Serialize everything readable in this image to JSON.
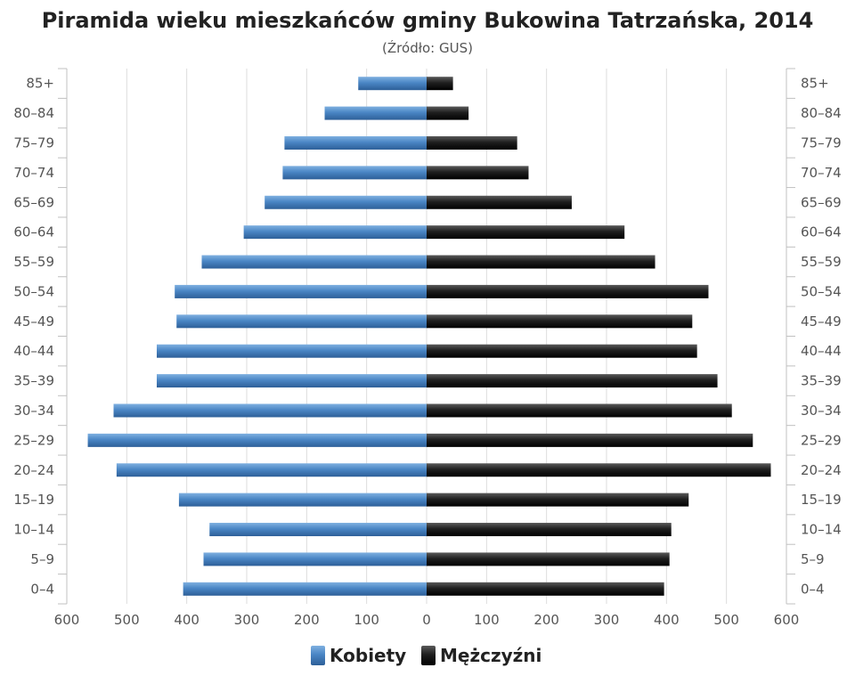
{
  "chart_data": {
    "type": "bar",
    "orientation": "horizontal-population-pyramid",
    "title": "Piramida wieku mieszkańców gminy Bukowina Tatrzańska, 2014",
    "subtitle": "(Źródło: GUS)",
    "categories": [
      "85+",
      "80–84",
      "75–79",
      "70–74",
      "65–69",
      "60–64",
      "55–59",
      "50–54",
      "45–49",
      "40–44",
      "35–39",
      "30–34",
      "25–29",
      "20–24",
      "15–19",
      "10–14",
      "5–9",
      "0–4"
    ],
    "series": [
      {
        "name": "Kobiety",
        "color": "#4a86c5",
        "values": [
          114,
          170,
          237,
          240,
          270,
          305,
          375,
          420,
          417,
          450,
          450,
          522,
          565,
          517,
          413,
          362,
          372,
          406
        ]
      },
      {
        "name": "Mężczyźni",
        "color": "#222222",
        "values": [
          44,
          70,
          151,
          170,
          242,
          330,
          381,
          470,
          443,
          451,
          485,
          509,
          544,
          574,
          437,
          408,
          405,
          396
        ]
      }
    ],
    "xlim": [
      -600,
      600
    ],
    "xticks": [
      -600,
      -500,
      -400,
      -300,
      -200,
      -100,
      0,
      100,
      200,
      300,
      400,
      500,
      600
    ],
    "xtick_labels": [
      "600",
      "500",
      "400",
      "300",
      "200",
      "100",
      "0",
      "100",
      "200",
      "300",
      "400",
      "500",
      "600"
    ],
    "grid": true,
    "legend_position": "bottom-center"
  }
}
